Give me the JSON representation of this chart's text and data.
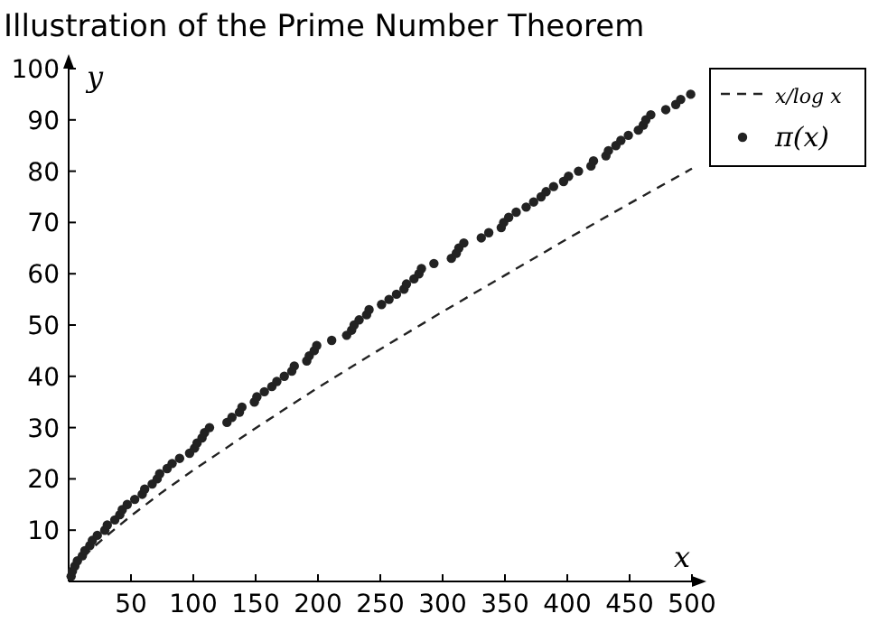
{
  "chart_data": {
    "type": "scatter",
    "title": "Illustration of the Prime Number Theorem",
    "xlabel": "x",
    "ylabel": "y",
    "xlim": [
      0,
      500
    ],
    "ylim": [
      0,
      100
    ],
    "xticks": [
      50,
      100,
      150,
      200,
      250,
      300,
      350,
      400,
      450,
      500
    ],
    "yticks": [
      10,
      20,
      30,
      40,
      50,
      60,
      70,
      80,
      90,
      100
    ],
    "grid": false,
    "legend": "right",
    "series": [
      {
        "name": "x/log x",
        "type": "line",
        "line_style": "dashed",
        "color": "#222222",
        "x": [
          2,
          5,
          10,
          20,
          30,
          50,
          75,
          100,
          150,
          200,
          250,
          300,
          350,
          400,
          450,
          500
        ],
        "values": [
          2.9,
          3.1,
          4.3,
          6.7,
          8.8,
          12.8,
          17.4,
          21.7,
          29.9,
          37.8,
          45.3,
          52.6,
          59.7,
          66.8,
          73.7,
          80.5
        ]
      },
      {
        "name": "π(x)",
        "marker": "circle",
        "color": "#222222",
        "x": [
          2,
          3,
          5,
          7,
          11,
          13,
          17,
          19,
          23,
          29,
          31,
          37,
          41,
          43,
          47,
          53,
          59,
          61,
          67,
          71,
          73,
          79,
          83,
          89,
          97,
          101,
          103,
          107,
          109,
          113,
          127,
          131,
          137,
          139,
          149,
          151,
          157,
          163,
          167,
          173,
          179,
          181,
          191,
          193,
          197,
          199,
          211,
          223,
          227,
          229,
          233,
          239,
          241,
          251,
          257,
          263,
          269,
          271,
          277,
          281,
          283,
          293,
          307,
          311,
          313,
          317,
          331,
          337,
          347,
          349,
          353,
          359,
          367,
          373,
          379,
          383,
          389,
          397,
          401,
          409,
          419,
          421,
          431,
          433,
          439,
          443,
          449,
          457,
          461,
          463,
          467,
          479,
          487,
          491,
          499
        ],
        "values": [
          1,
          2,
          3,
          4,
          5,
          6,
          7,
          8,
          9,
          10,
          11,
          12,
          13,
          14,
          15,
          16,
          17,
          18,
          19,
          20,
          21,
          22,
          23,
          24,
          25,
          26,
          27,
          28,
          29,
          30,
          31,
          32,
          33,
          34,
          35,
          36,
          37,
          38,
          39,
          40,
          41,
          42,
          43,
          44,
          45,
          46,
          47,
          48,
          49,
          50,
          51,
          52,
          53,
          54,
          55,
          56,
          57,
          58,
          59,
          60,
          61,
          62,
          63,
          64,
          65,
          66,
          67,
          68,
          69,
          70,
          71,
          72,
          73,
          74,
          75,
          76,
          77,
          78,
          79,
          80,
          81,
          82,
          83,
          84,
          85,
          86,
          87,
          88,
          89,
          90,
          91,
          92,
          93,
          94,
          95
        ]
      }
    ]
  }
}
